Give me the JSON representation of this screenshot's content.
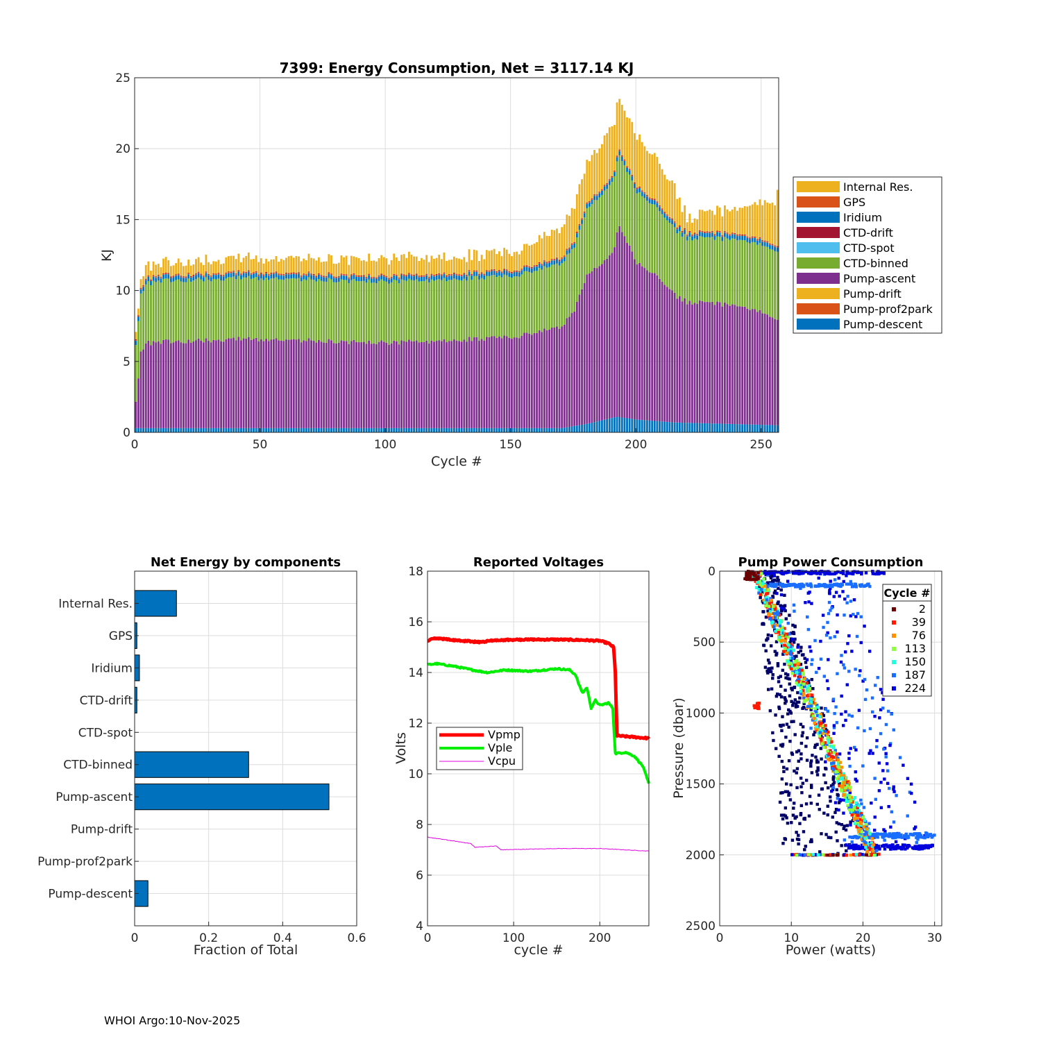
{
  "footer": "WHOI Argo:10-Nov-2025",
  "chart_data": [
    {
      "id": "energy",
      "type": "bar",
      "stacked": true,
      "title": "7399: Energy Consumption,  Net = 3117.14 KJ",
      "xlabel": "Cycle #",
      "ylabel": "KJ",
      "xlim": [
        0,
        257
      ],
      "ylim": [
        0,
        25
      ],
      "xticks": [
        0,
        50,
        100,
        150,
        200,
        250
      ],
      "yticks": [
        0,
        5,
        10,
        15,
        20,
        25
      ],
      "grid": true,
      "legend_position": "outside-right",
      "legend": [
        "Internal Res.",
        "GPS",
        "Iridium",
        "CTD-drift",
        "CTD-spot",
        "CTD-binned",
        "Pump-ascent",
        "Pump-drift",
        "Pump-prof2park",
        "Pump-descent"
      ],
      "colors": {
        "Internal Res.": "#EDB120",
        "GPS": "#D95319",
        "Iridium": "#0072BD",
        "CTD-drift": "#A2142F",
        "CTD-spot": "#4DBEEE",
        "CTD-binned": "#77AC30",
        "Pump-ascent": "#7E2F8E",
        "Pump-drift": "#EDB120",
        "Pump-prof2park": "#D95319",
        "Pump-descent": "#0072BD"
      },
      "cycles": [
        0,
        257
      ],
      "series_keypoints": {
        "note": "approximate per-cycle values (KJ), linearly interpolated between listed cycles",
        "Pump-descent": [
          [
            0,
            0.3
          ],
          [
            170,
            0.3
          ],
          [
            180,
            0.6
          ],
          [
            192,
            1.1
          ],
          [
            200,
            0.9
          ],
          [
            215,
            0.7
          ],
          [
            257,
            0.5
          ]
        ],
        "Pump-ascent": [
          [
            0,
            2.0
          ],
          [
            1,
            3.6
          ],
          [
            2,
            5.5
          ],
          [
            5,
            6.0
          ],
          [
            10,
            6.1
          ],
          [
            50,
            6.3
          ],
          [
            100,
            6.0
          ],
          [
            150,
            6.4
          ],
          [
            170,
            7.2
          ],
          [
            175,
            8.2
          ],
          [
            180,
            10.5
          ],
          [
            190,
            11.5
          ],
          [
            193,
            13.5
          ],
          [
            200,
            11.0
          ],
          [
            210,
            10.0
          ],
          [
            215,
            9.0
          ],
          [
            220,
            8.5
          ],
          [
            240,
            8.4
          ],
          [
            257,
            7.5
          ]
        ],
        "CTD-binned": [
          [
            0,
            4.0
          ],
          [
            5,
            4.2
          ],
          [
            10,
            4.3
          ],
          [
            100,
            4.3
          ],
          [
            150,
            4.3
          ],
          [
            175,
            4.5
          ],
          [
            190,
            5.0
          ],
          [
            200,
            5.0
          ],
          [
            220,
            4.5
          ],
          [
            257,
            4.8
          ]
        ],
        "Iridium": [
          [
            0,
            0.3
          ],
          [
            257,
            0.3
          ]
        ],
        "GPS": [
          [
            0,
            0.05
          ],
          [
            257,
            0.05
          ]
        ],
        "CTD-drift": [
          [
            0,
            0.05
          ],
          [
            257,
            0.05
          ]
        ],
        "Internal Res.": [
          [
            0,
            0.7
          ],
          [
            10,
            0.9
          ],
          [
            100,
            1.2
          ],
          [
            150,
            1.2
          ],
          [
            175,
            2.5
          ],
          [
            190,
            3.5
          ],
          [
            200,
            3.5
          ],
          [
            215,
            2.5
          ],
          [
            220,
            1.0
          ],
          [
            240,
            1.8
          ],
          [
            255,
            3.0
          ],
          [
            257,
            5.0
          ]
        ]
      }
    },
    {
      "id": "components",
      "type": "barh",
      "title": "Net Energy by components",
      "xlabel": "Fraction of Total",
      "xlim": [
        0,
        0.6
      ],
      "xticks": [
        0,
        0.2,
        0.4,
        0.6
      ],
      "xtick_labels": [
        "0",
        "0.2",
        "0.4",
        "0.6"
      ],
      "grid": true,
      "bar_color": "#0072BD",
      "categories": [
        "Internal Res.",
        "GPS",
        "Iridium",
        "CTD-drift",
        "CTD-spot",
        "CTD-binned",
        "Pump-ascent",
        "Pump-drift",
        "Pump-prof2park",
        "Pump-descent"
      ],
      "values": [
        0.113,
        0.006,
        0.013,
        0.006,
        0.0,
        0.308,
        0.525,
        0.0,
        0.0,
        0.036
      ]
    },
    {
      "id": "voltages",
      "type": "line",
      "title": "Reported Voltages",
      "xlabel": "cycle #",
      "ylabel": "Volts",
      "xlim": [
        0,
        257
      ],
      "ylim": [
        4,
        18
      ],
      "xticks": [
        0,
        100,
        200
      ],
      "yticks": [
        4,
        6,
        8,
        10,
        12,
        14,
        16,
        18
      ],
      "grid": true,
      "legend_position": "center-left",
      "series": [
        {
          "name": "Vpmp",
          "color": "#FF0000",
          "width": 5,
          "points": [
            [
              0,
              15.25
            ],
            [
              3,
              15.3
            ],
            [
              10,
              15.35
            ],
            [
              30,
              15.28
            ],
            [
              60,
              15.2
            ],
            [
              80,
              15.28
            ],
            [
              120,
              15.3
            ],
            [
              150,
              15.3
            ],
            [
              180,
              15.28
            ],
            [
              200,
              15.25
            ],
            [
              210,
              15.15
            ],
            [
              216,
              15.0
            ],
            [
              218,
              14.0
            ],
            [
              220,
              11.5
            ],
            [
              240,
              11.45
            ],
            [
              257,
              11.4
            ]
          ]
        },
        {
          "name": "Vple",
          "color": "#00EE00",
          "width": 4,
          "points": [
            [
              0,
              14.3
            ],
            [
              10,
              14.35
            ],
            [
              30,
              14.25
            ],
            [
              60,
              14.05
            ],
            [
              70,
              14.0
            ],
            [
              90,
              14.1
            ],
            [
              120,
              14.05
            ],
            [
              150,
              14.15
            ],
            [
              165,
              14.1
            ],
            [
              172,
              13.9
            ],
            [
              176,
              13.5
            ],
            [
              180,
              13.2
            ],
            [
              185,
              13.4
            ],
            [
              190,
              12.6
            ],
            [
              195,
              12.9
            ],
            [
              200,
              12.7
            ],
            [
              210,
              12.8
            ],
            [
              215,
              12.6
            ],
            [
              218,
              10.8
            ],
            [
              230,
              10.85
            ],
            [
              240,
              10.7
            ],
            [
              250,
              10.3
            ],
            [
              257,
              9.6
            ]
          ]
        },
        {
          "name": "Vcpu",
          "color": "#E000E0",
          "width": 1,
          "points": [
            [
              0,
              7.5
            ],
            [
              20,
              7.4
            ],
            [
              50,
              7.25
            ],
            [
              55,
              7.1
            ],
            [
              80,
              7.15
            ],
            [
              85,
              7.0
            ],
            [
              150,
              7.05
            ],
            [
              200,
              7.05
            ],
            [
              257,
              6.95
            ]
          ]
        }
      ]
    },
    {
      "id": "pump",
      "type": "scatter",
      "title": "Pump Power Consumption",
      "xlabel": "Power (watts)",
      "ylabel": "Pressure (dbar)",
      "xlim": [
        0,
        31
      ],
      "ylim": [
        0,
        2500
      ],
      "y_reversed": true,
      "xticks": [
        0,
        10,
        20,
        30
      ],
      "yticks": [
        0,
        500,
        1000,
        1500,
        2000,
        2500
      ],
      "grid": true,
      "legend_title": "Cycle #",
      "legend": [
        "2",
        "39",
        "76",
        "113",
        "150",
        "187",
        "224"
      ],
      "legend_colors": [
        "#6B0000",
        "#FF1A00",
        "#FF9000",
        "#8CFF40",
        "#20FFE0",
        "#1A6EFF",
        "#0000DD"
      ],
      "groups": {
        "note": "approximate point clouds: main diagonal trend from ~5 W at 0 dbar to ~22 W at 2000 dbar, plus spread for late cycles",
        "trend": {
          "power_at_0": 5.0,
          "power_at_2000": 21.5
        },
        "late_spread": {
          "power_range": [
            6,
            30
          ],
          "pressure_range": [
            0,
            2000
          ]
        }
      }
    }
  ]
}
